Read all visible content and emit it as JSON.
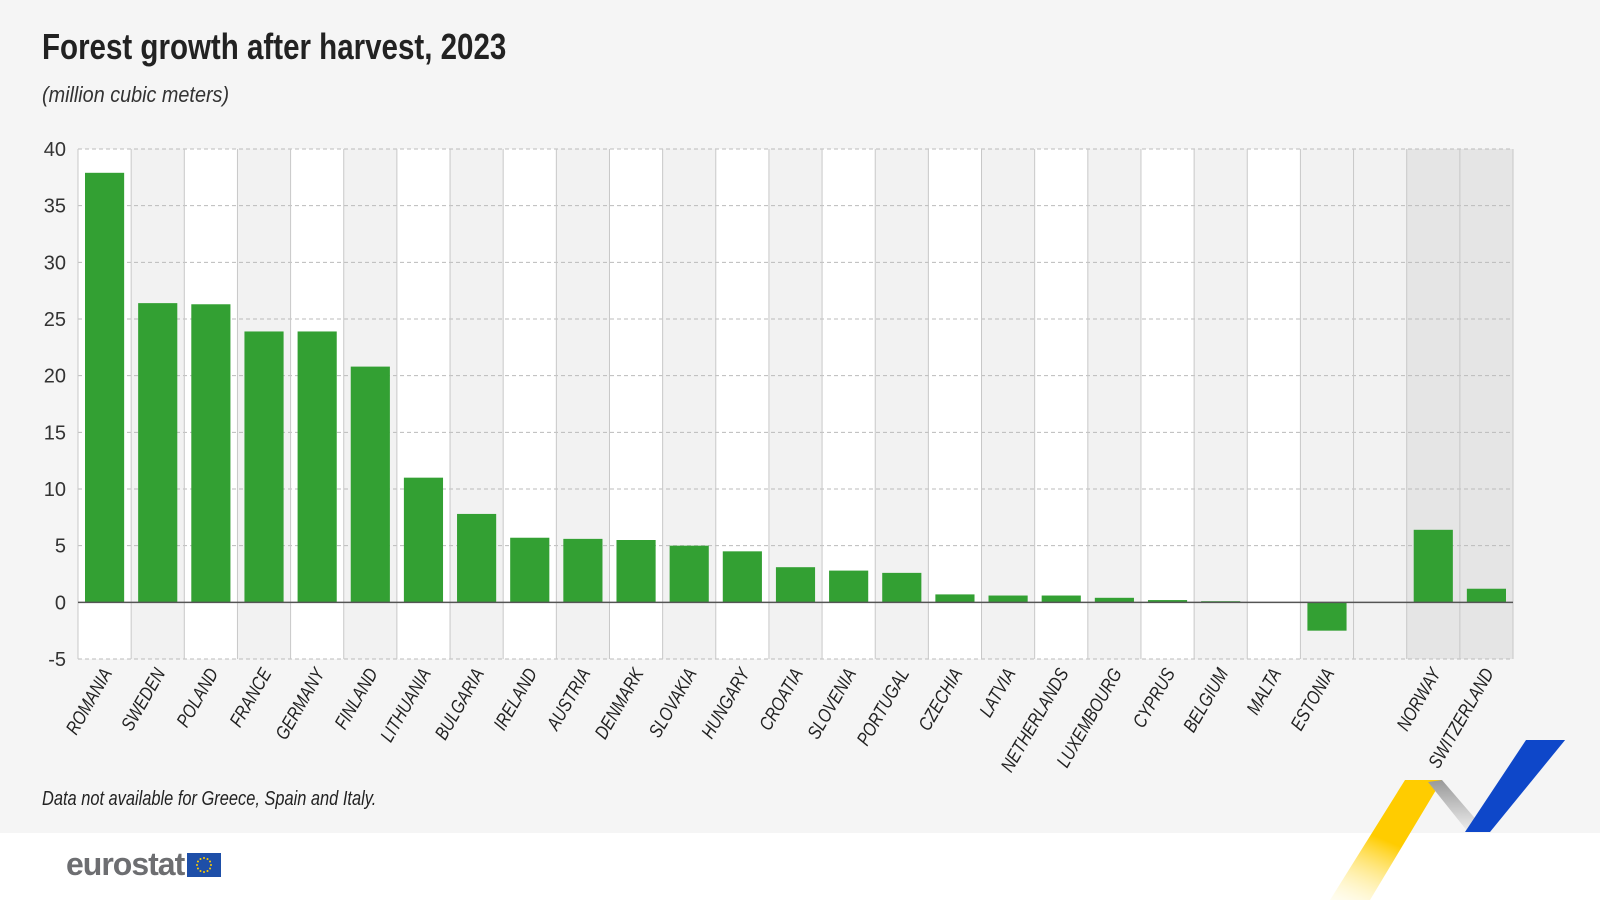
{
  "title": "Forest growth after harvest, 2023",
  "subtitle": "(million cubic meters)",
  "note": "Data not available for Greece, Spain and Italy.",
  "logo": {
    "text": "eurostat",
    "flag": "eu-flag-icon"
  },
  "colors": {
    "bar": "#33a033",
    "panel": "#f5f5f5",
    "column_alt": "#f2f2f2",
    "column_nonEU": "#e5e5e5"
  },
  "chart_data": {
    "type": "bar",
    "title": "Forest growth after harvest, 2023",
    "ylabel": "",
    "xlabel": "",
    "ylim": [
      -5,
      40
    ],
    "yticks": [
      -5,
      0,
      5,
      10,
      15,
      20,
      25,
      30,
      35,
      40
    ],
    "grid": true,
    "categories": [
      "ROMANIA",
      "SWEDEN",
      "POLAND",
      "FRANCE",
      "GERMANY",
      "FINLAND",
      "LITHUANIA",
      "BULGARIA",
      "IRELAND",
      "AUSTRIA",
      "DENMARK",
      "SLOVAKIA",
      "HUNGARY",
      "CROATIA",
      "SLOVENIA",
      "PORTUGAL",
      "CZECHIA",
      "LATVIA",
      "NETHERLANDS",
      "LUXEMBOURG",
      "CYPRUS",
      "BELGIUM",
      "MALTA",
      "ESTONIA",
      "",
      "NORWAY",
      "SWITZERLAND"
    ],
    "values": [
      37.9,
      26.4,
      26.3,
      23.9,
      23.9,
      20.8,
      11.0,
      7.8,
      5.7,
      5.6,
      5.5,
      5.0,
      4.5,
      3.1,
      2.8,
      2.6,
      0.7,
      0.6,
      0.6,
      0.4,
      0.2,
      0.1,
      0.0,
      -2.5,
      null,
      6.4,
      1.2
    ],
    "non_eu": [
      "NORWAY",
      "SWITZERLAND"
    ]
  }
}
